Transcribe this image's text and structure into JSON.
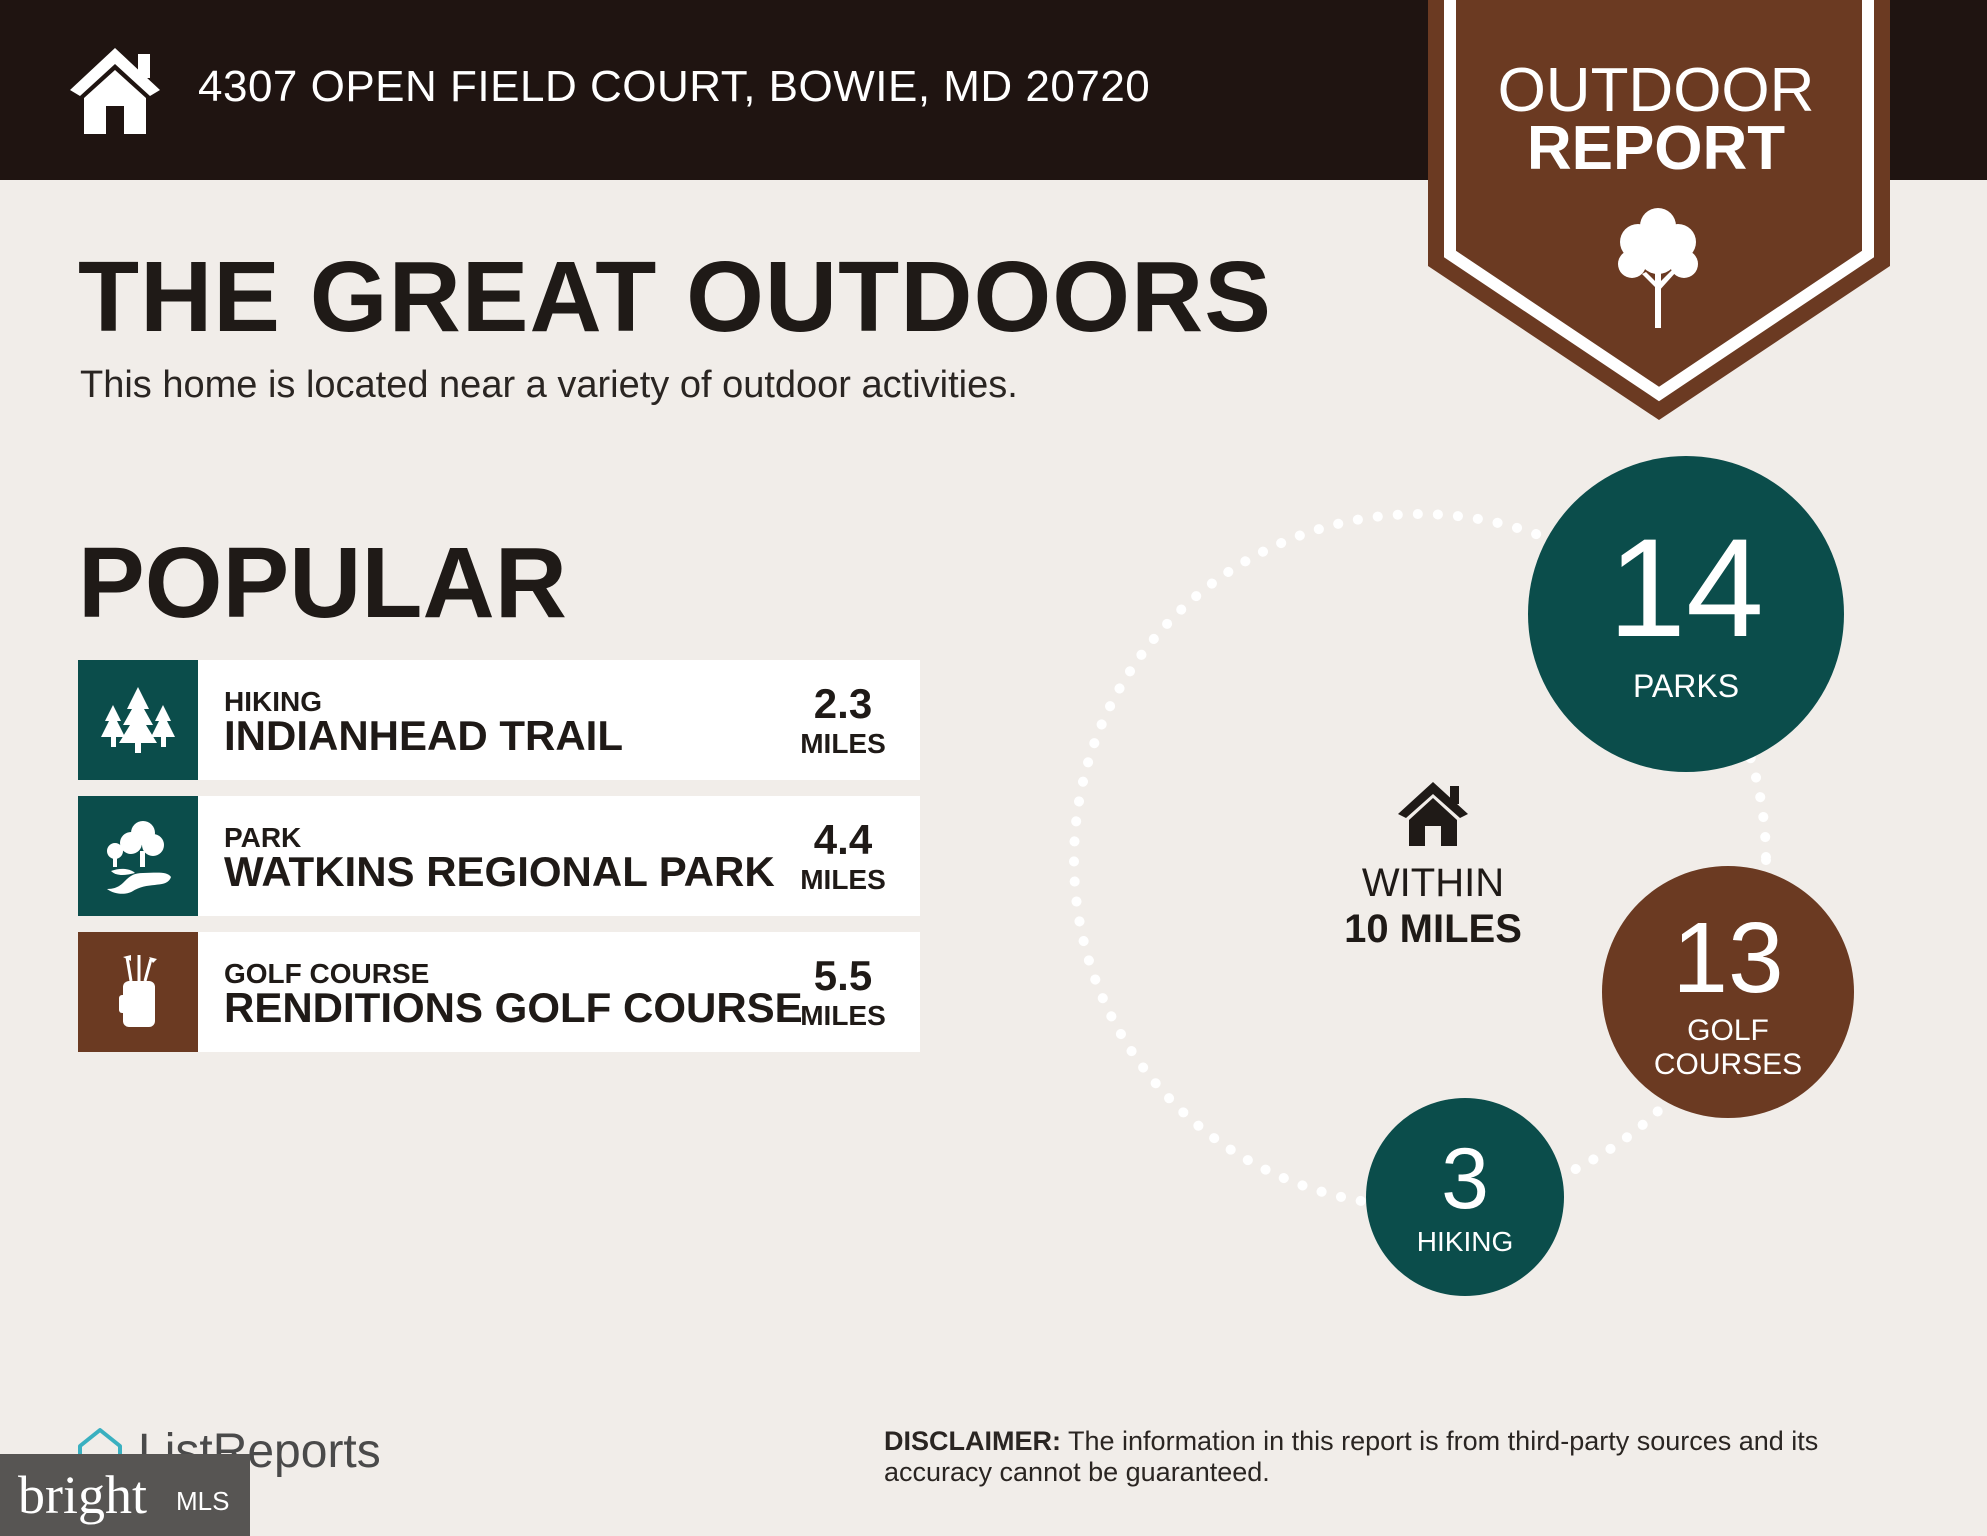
{
  "header": {
    "address": "4307 OPEN FIELD COURT, BOWIE, MD 20720",
    "badge_line1": "OUTDOOR",
    "badge_line2": "REPORT"
  },
  "intro": {
    "title": "THE GREAT OUTDOORS",
    "subtitle": "This home is located near a variety of outdoor activities."
  },
  "popular": {
    "title": "POPULAR",
    "items": [
      {
        "category": "HIKING",
        "name": "INDIANHEAD TRAIL",
        "distance": "2.3",
        "unit": "MILES",
        "icon": "trees-icon",
        "color": "#0b4d4b"
      },
      {
        "category": "PARK",
        "name": "WATKINS REGIONAL PARK",
        "distance": "4.4",
        "unit": "MILES",
        "icon": "park-icon",
        "color": "#0b4d4b"
      },
      {
        "category": "GOLF COURSE",
        "name": "RENDITIONS GOLF COURSE",
        "distance": "5.5",
        "unit": "MILES",
        "icon": "golf-bag-icon",
        "color": "#6b3a22"
      }
    ]
  },
  "summary": {
    "within_line1": "WITHIN",
    "within_line2": "10 MILES",
    "parks": {
      "count": "14",
      "label": "PARKS",
      "color": "#0b4d4b"
    },
    "golf": {
      "count": "13",
      "label_line1": "GOLF",
      "label_line2": "COURSES",
      "color": "#6b3a22"
    },
    "hiking": {
      "count": "3",
      "label": "HIKING",
      "color": "#0b4d4b"
    }
  },
  "footer": {
    "brand": "ListReports",
    "bright_word": "bright",
    "bright_mls": "MLS",
    "disclaimer_label": "DISCLAIMER:",
    "disclaimer_text": " The information in this report is from third-party sources and its accuracy cannot be guaranteed."
  },
  "colors": {
    "header_bg": "#1f1411",
    "page_bg": "#f1ede9",
    "teal": "#0b4d4b",
    "brown": "#6b3a22"
  }
}
